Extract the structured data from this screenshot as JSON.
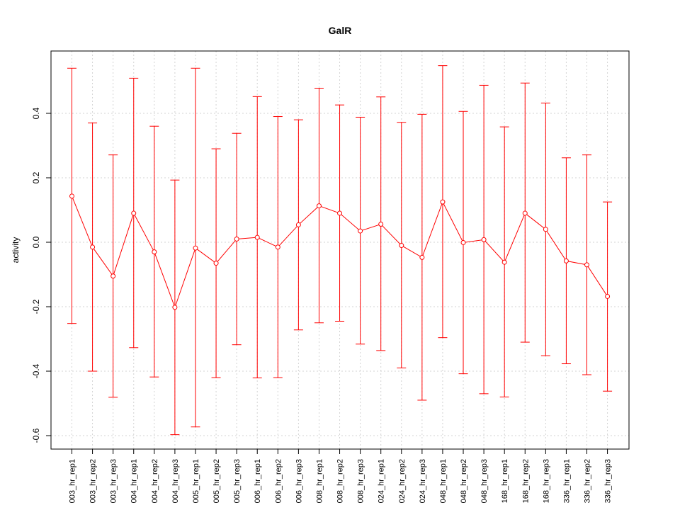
{
  "chart_data": {
    "type": "line",
    "title": "GalR",
    "xlabel": "",
    "ylabel": "activity",
    "ylim": [
      -0.64,
      0.6
    ],
    "yticks": [
      -0.6,
      -0.4,
      -0.2,
      0.0,
      0.2,
      0.4
    ],
    "ytick_labels": [
      "-0.6",
      "-0.4",
      "-0.2",
      "0.0",
      "0.2",
      "0.4"
    ],
    "grid": true,
    "series_color": "#ff0000",
    "grid_color": "#d3d3d3",
    "categories": [
      "003_hr_rep1",
      "003_hr_rep2",
      "003_hr_rep3",
      "004_hr_rep1",
      "004_hr_rep2",
      "004_hr_rep3",
      "005_hr_rep1",
      "005_hr_rep2",
      "005_hr_rep3",
      "006_hr_rep1",
      "006_hr_rep2",
      "006_hr_rep3",
      "008_hr_rep1",
      "008_hr_rep2",
      "008_hr_rep3",
      "024_hr_rep1",
      "024_hr_rep2",
      "024_hr_rep3",
      "048_hr_rep1",
      "048_hr_rep2",
      "048_hr_rep3",
      "168_hr_rep1",
      "168_hr_rep2",
      "168_hr_rep3",
      "336_hr_rep1",
      "336_hr_rep2",
      "336_hr_rep3"
    ],
    "values": [
      0.143,
      -0.015,
      -0.105,
      0.09,
      -0.03,
      -0.202,
      -0.018,
      -0.065,
      0.01,
      0.015,
      -0.015,
      0.054,
      0.113,
      0.09,
      0.035,
      0.056,
      -0.01,
      -0.047,
      0.125,
      -0.001,
      0.008,
      -0.062,
      0.09,
      0.04,
      -0.058,
      -0.07,
      -0.168
    ],
    "upper": [
      0.54,
      0.37,
      0.271,
      0.509,
      0.36,
      0.193,
      0.54,
      0.29,
      0.338,
      0.452,
      0.39,
      0.38,
      0.478,
      0.426,
      0.388,
      0.451,
      0.372,
      0.397,
      0.548,
      0.406,
      0.487,
      0.358,
      0.494,
      0.432,
      0.262,
      0.271,
      0.125
    ],
    "lower": [
      -0.252,
      -0.4,
      -0.481,
      -0.327,
      -0.418,
      -0.597,
      -0.573,
      -0.42,
      -0.318,
      -0.421,
      -0.42,
      -0.272,
      -0.25,
      -0.245,
      -0.316,
      -0.336,
      -0.39,
      -0.49,
      -0.296,
      -0.408,
      -0.47,
      -0.48,
      -0.31,
      -0.352,
      -0.377,
      -0.411,
      -0.462
    ]
  }
}
